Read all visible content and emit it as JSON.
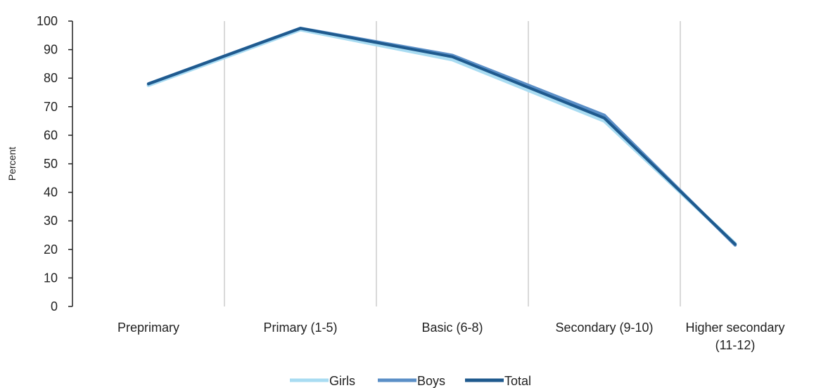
{
  "chart_data": {
    "type": "line",
    "title": "",
    "xlabel": "",
    "ylabel": "Percent",
    "categories": [
      "Preprimary",
      "Primary (1-5)",
      "Basic (6-8)",
      "Secondary (9-10)",
      "Higher secondary (11-12)"
    ],
    "category_lines": [
      [
        "Preprimary"
      ],
      [
        "Primary (1-5)"
      ],
      [
        "Basic (6-8)"
      ],
      [
        "Secondary (9-10)"
      ],
      [
        "Higher secondary",
        "(11-12)"
      ]
    ],
    "ylim": [
      0,
      100
    ],
    "yticks": [
      0,
      10,
      20,
      30,
      40,
      50,
      60,
      70,
      80,
      90,
      100
    ],
    "grid": "vertical category gridlines",
    "legend_position": "bottom",
    "series": [
      {
        "name": "Girls",
        "color": "#a9dcf2",
        "values": [
          77.5,
          97,
          86.5,
          65,
          22
        ]
      },
      {
        "name": "Boys",
        "color": "#5b8fc7",
        "values": [
          78,
          97.5,
          88,
          67,
          21.5
        ]
      },
      {
        "name": "Total",
        "color": "#1f5a8e",
        "values": [
          78,
          97.5,
          87.5,
          66,
          21.8
        ]
      }
    ]
  }
}
